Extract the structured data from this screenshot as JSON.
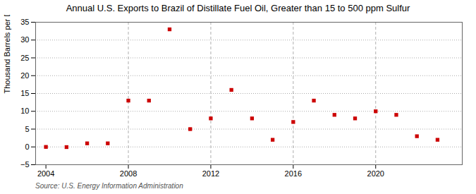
{
  "chart_data": {
    "type": "scatter",
    "title": "Annual U.S. Exports to Brazil of Distillate Fuel Oil, Greater than 15 to 500 ppm Sulfur",
    "ylabel": "Thousand Barrels per Day",
    "source": "Source: U.S. Energy Information Administration",
    "x": [
      2004,
      2005,
      2006,
      2007,
      2008,
      2009,
      2010,
      2011,
      2012,
      2013,
      2014,
      2015,
      2016,
      2017,
      2018,
      2019,
      2020,
      2021,
      2022,
      2023
    ],
    "values": [
      0.0,
      -0.05,
      1.0,
      1.0,
      13.0,
      13.0,
      33.0,
      5.0,
      8.0,
      16.0,
      8.0,
      2.0,
      7.0,
      13.0,
      9.0,
      8.0,
      10.0,
      9.0,
      3.0,
      2.0
    ],
    "color": "#cc0000",
    "marker": "square",
    "vlines": [
      2008,
      2012,
      2016,
      2020
    ],
    "xlim": [
      2003.5,
      2024.2
    ],
    "xticks": [
      2004,
      2008,
      2012,
      2016,
      2020
    ],
    "ylim": [
      -5,
      35
    ],
    "yticks": [
      -5,
      0,
      5,
      10,
      15,
      20,
      25,
      30,
      35
    ],
    "grid": true
  }
}
